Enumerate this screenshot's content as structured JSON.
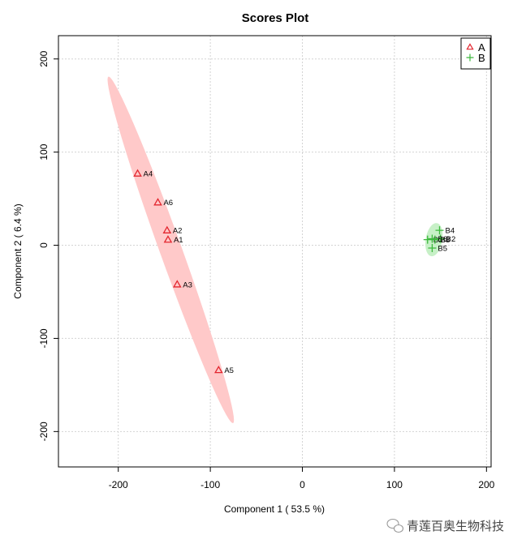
{
  "chart_data": {
    "type": "scatter",
    "title": "Scores Plot",
    "xlabel": "Component 1 ( 53.5 %)",
    "ylabel": "Component 2 ( 6.4 %)",
    "xlim": [
      -265,
      205
    ],
    "ylim": [
      -238,
      225
    ],
    "x_ticks": [
      -200,
      -100,
      0,
      100,
      200
    ],
    "y_ticks": [
      -200,
      -100,
      0,
      100,
      200
    ],
    "grid": true,
    "legend_position": "top-right",
    "series": [
      {
        "name": "A",
        "marker": "triangle",
        "color": "#e3262f",
        "ellipse_color": "#ffc9c9",
        "points": [
          {
            "label": "A4",
            "x": -179,
            "y": 77
          },
          {
            "label": "A6",
            "x": -157,
            "y": 46
          },
          {
            "label": "A2",
            "x": -147,
            "y": 16
          },
          {
            "label": "A1",
            "x": -146,
            "y": 6
          },
          {
            "label": "A3",
            "x": -136,
            "y": -42
          },
          {
            "label": "A5",
            "x": -91,
            "y": -134
          }
        ],
        "ellipse": {
          "cx": -143,
          "cy": -5,
          "major": 198,
          "minor": 12,
          "angle_deg": -70
        }
      },
      {
        "name": "B",
        "marker": "plus",
        "color": "#3cb83c",
        "ellipse_color": "#c7f0c7",
        "points": [
          {
            "label": "B4",
            "x": 149,
            "y": 16
          },
          {
            "label": "B1",
            "x": 136,
            "y": 6
          },
          {
            "label": "B3",
            "x": 144,
            "y": 6
          },
          {
            "label": "B2",
            "x": 150,
            "y": 7
          },
          {
            "label": "B6",
            "x": 141,
            "y": 7
          },
          {
            "label": "B5",
            "x": 141,
            "y": -3
          }
        ],
        "ellipse": {
          "cx": 143,
          "cy": 6,
          "major": 18,
          "minor": 9,
          "angle_deg": 80
        }
      }
    ]
  },
  "watermark": {
    "icon": "wechat-icon",
    "text": "青莲百奥生物科技"
  }
}
